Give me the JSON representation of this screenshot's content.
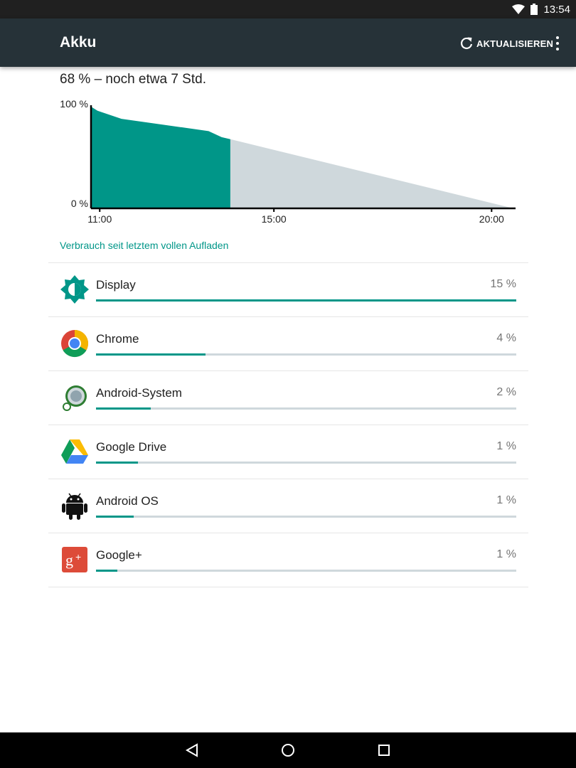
{
  "status_bar": {
    "time": "13:54",
    "icons": [
      "wifi-icon",
      "battery-icon"
    ]
  },
  "app_bar": {
    "title": "Akku",
    "refresh_label": "AKTUALISIEREN",
    "icons": [
      "refresh-icon",
      "more-vert-icon"
    ]
  },
  "summary": "68 % – noch etwa 7 Std.",
  "chart_data": {
    "type": "area",
    "y_labels": [
      "100 %",
      "0 %"
    ],
    "x_ticks": [
      "11:00",
      "15:00",
      "20:00"
    ],
    "series": [
      {
        "kind": "actual",
        "points": [
          [
            10.8,
            100
          ],
          [
            10.95,
            96
          ],
          [
            11.5,
            88
          ],
          [
            12.5,
            82
          ],
          [
            13.5,
            76
          ],
          [
            13.8,
            70
          ],
          [
            14.0,
            68
          ]
        ]
      },
      {
        "kind": "estimate",
        "points": [
          [
            14.0,
            68
          ],
          [
            20.5,
            0
          ]
        ]
      }
    ],
    "colors": {
      "actual": "#009688",
      "estimate": "#cfd8dc"
    }
  },
  "section_header": "Verbrauch seit letztem vollen Aufladen",
  "usage": [
    {
      "name": "Display",
      "percent_label": "15 %",
      "bar_fraction": 1.0,
      "icon": "brightness-icon"
    },
    {
      "name": "Chrome",
      "percent_label": "4 %",
      "bar_fraction": 0.26,
      "icon": "chrome-icon"
    },
    {
      "name": "Android-System",
      "percent_label": "2 %",
      "bar_fraction": 0.13,
      "icon": "android-system-icon"
    },
    {
      "name": "Google Drive",
      "percent_label": "1 %",
      "bar_fraction": 0.1,
      "icon": "google-drive-icon"
    },
    {
      "name": "Android OS",
      "percent_label": "1 %",
      "bar_fraction": 0.09,
      "icon": "android-icon"
    },
    {
      "name": "Google+",
      "percent_label": "1 %",
      "bar_fraction": 0.05,
      "icon": "google-plus-icon"
    }
  ],
  "nav_bar": {
    "icons": [
      "back-icon",
      "home-icon",
      "recents-icon"
    ]
  },
  "colors": {
    "accent": "#009688",
    "app_bar": "#263238",
    "status_bar": "#202020"
  }
}
